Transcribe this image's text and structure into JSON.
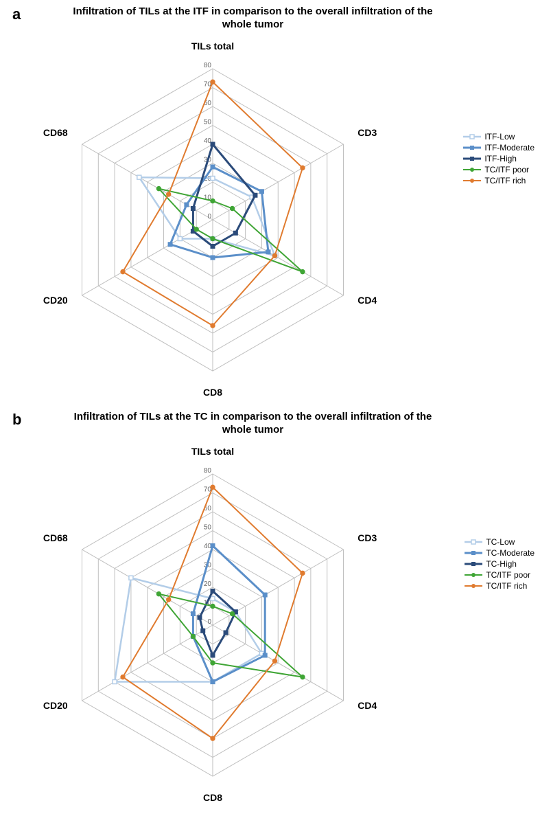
{
  "chartA": {
    "panel_label": "a",
    "title": "Infiltration of TILs at the ITF in comparison to the overall infiltration of the whole tumor",
    "type": "radar",
    "axes": [
      "TILs total",
      "CD3",
      "CD4",
      "CD8",
      "CD20",
      "CD68"
    ],
    "max": 80,
    "tick_step": 10,
    "tick_labels": [
      "0",
      "10",
      "20",
      "30",
      "40",
      "50",
      "60",
      "70",
      "80"
    ],
    "grid_color": "#bfbfbf",
    "grid_fill": "#ffffff",
    "background": "#ffffff",
    "axis_label_fontsize": 14,
    "tick_fontsize": 10,
    "title_fontsize": 15,
    "series": [
      {
        "name": "ITF-Low",
        "color": "#b3cde8",
        "marker": "square-open",
        "lineWidth": 2.5,
        "data": [
          22,
          24,
          38,
          10,
          20,
          45
        ]
      },
      {
        "name": "ITF-Moderate",
        "color": "#5b8fc9",
        "marker": "square",
        "lineWidth": 3,
        "data": [
          28,
          30,
          34,
          20,
          26,
          16
        ]
      },
      {
        "name": "ITF-High",
        "color": "#2b4b7a",
        "marker": "square",
        "lineWidth": 3,
        "data": [
          40,
          26,
          14,
          14,
          12,
          12
        ]
      },
      {
        "name": "TC/ITF poor",
        "color": "#3fa535",
        "marker": "circle",
        "lineWidth": 2,
        "data": [
          10,
          12,
          55,
          10,
          10,
          33
        ]
      },
      {
        "name": "TC/ITF rich",
        "color": "#e07b2f",
        "marker": "circle",
        "lineWidth": 2,
        "data": [
          73,
          55,
          38,
          56,
          55,
          27
        ]
      }
    ]
  },
  "chartB": {
    "panel_label": "b",
    "title": "Infiltration of TILs at the TC in comparison to the overall infiltration of the whole tumor",
    "type": "radar",
    "axes": [
      "TILs total",
      "CD3",
      "CD4",
      "CD8",
      "CD20",
      "CD68"
    ],
    "max": 80,
    "tick_step": 10,
    "tick_labels": [
      "0",
      "10",
      "20",
      "30",
      "40",
      "50",
      "60",
      "70",
      "80"
    ],
    "grid_color": "#bfbfbf",
    "grid_fill": "#ffffff",
    "background": "#ffffff",
    "axis_label_fontsize": 14,
    "tick_fontsize": 10,
    "title_fontsize": 15,
    "series": [
      {
        "name": "TC-Low",
        "color": "#b3cde8",
        "marker": "square-open",
        "lineWidth": 2.5,
        "data": [
          14,
          14,
          30,
          30,
          60,
          50
        ]
      },
      {
        "name": "TC-Moderate",
        "color": "#5b8fc9",
        "marker": "square",
        "lineWidth": 3,
        "data": [
          42,
          32,
          32,
          30,
          12,
          12
        ]
      },
      {
        "name": "TC-High",
        "color": "#2b4b7a",
        "marker": "square",
        "lineWidth": 3,
        "data": [
          18,
          14,
          8,
          16,
          6,
          8
        ]
      },
      {
        "name": "TC/ITF poor",
        "color": "#3fa535",
        "marker": "circle",
        "lineWidth": 2,
        "data": [
          10,
          12,
          55,
          20,
          12,
          33
        ]
      },
      {
        "name": "TC/ITF rich",
        "color": "#e07b2f",
        "marker": "circle",
        "lineWidth": 2,
        "data": [
          73,
          55,
          38,
          60,
          55,
          27
        ]
      }
    ]
  },
  "legend_marker_size": 6
}
